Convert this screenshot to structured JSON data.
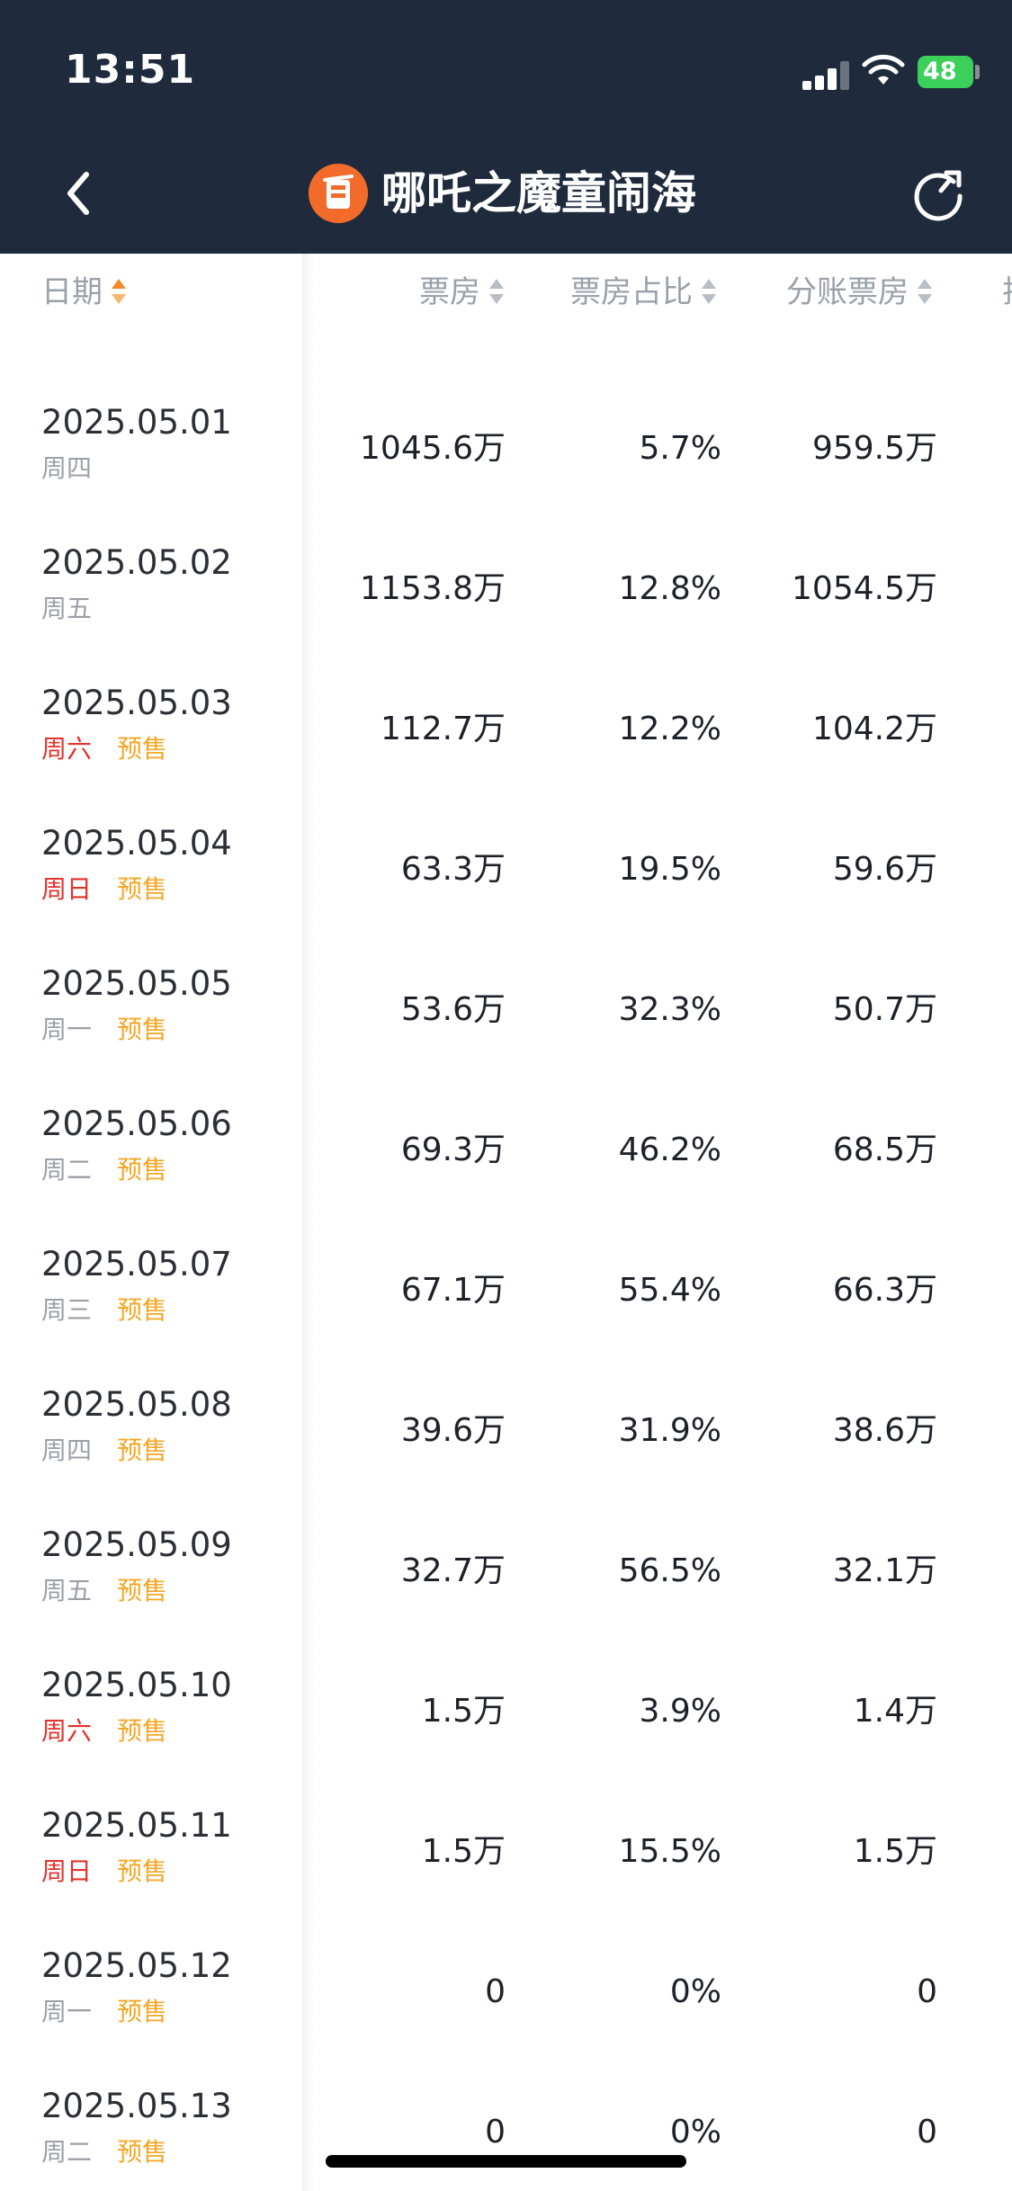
{
  "status_bar": {
    "time": "13:51",
    "battery": "48"
  },
  "nav": {
    "back_icon": "chevron-left-icon",
    "logo_icon": "movie-logo-icon",
    "title": "哪吒之魔童闹海",
    "refresh_icon": "refresh-icon"
  },
  "columns": {
    "date": "日期",
    "box_office": "票房",
    "share": "票房占比",
    "split_box_office": "分账票房",
    "next_partial": "排"
  },
  "presale_label": "预售",
  "colors": {
    "nav_bg": "#1f2a3d",
    "weekend": "#e5302b",
    "presale": "#f5a623",
    "sort_active": "#f38b2c"
  },
  "rows": [
    {
      "date": "2025.05.01",
      "weekday": "周四",
      "weekend": false,
      "presale": false,
      "box_office": "1045.6万",
      "share": "5.7%",
      "split": "959.5万"
    },
    {
      "date": "2025.05.02",
      "weekday": "周五",
      "weekend": false,
      "presale": false,
      "box_office": "1153.8万",
      "share": "12.8%",
      "split": "1054.5万"
    },
    {
      "date": "2025.05.03",
      "weekday": "周六",
      "weekend": true,
      "presale": true,
      "box_office": "112.7万",
      "share": "12.2%",
      "split": "104.2万"
    },
    {
      "date": "2025.05.04",
      "weekday": "周日",
      "weekend": true,
      "presale": true,
      "box_office": "63.3万",
      "share": "19.5%",
      "split": "59.6万"
    },
    {
      "date": "2025.05.05",
      "weekday": "周一",
      "weekend": false,
      "presale": true,
      "box_office": "53.6万",
      "share": "32.3%",
      "split": "50.7万"
    },
    {
      "date": "2025.05.06",
      "weekday": "周二",
      "weekend": false,
      "presale": true,
      "box_office": "69.3万",
      "share": "46.2%",
      "split": "68.5万"
    },
    {
      "date": "2025.05.07",
      "weekday": "周三",
      "weekend": false,
      "presale": true,
      "box_office": "67.1万",
      "share": "55.4%",
      "split": "66.3万"
    },
    {
      "date": "2025.05.08",
      "weekday": "周四",
      "weekend": false,
      "presale": true,
      "box_office": "39.6万",
      "share": "31.9%",
      "split": "38.6万"
    },
    {
      "date": "2025.05.09",
      "weekday": "周五",
      "weekend": false,
      "presale": true,
      "box_office": "32.7万",
      "share": "56.5%",
      "split": "32.1万"
    },
    {
      "date": "2025.05.10",
      "weekday": "周六",
      "weekend": true,
      "presale": true,
      "box_office": "1.5万",
      "share": "3.9%",
      "split": "1.4万"
    },
    {
      "date": "2025.05.11",
      "weekday": "周日",
      "weekend": true,
      "presale": true,
      "box_office": "1.5万",
      "share": "15.5%",
      "split": "1.5万"
    },
    {
      "date": "2025.05.12",
      "weekday": "周一",
      "weekend": false,
      "presale": true,
      "box_office": "0",
      "share": "0%",
      "split": "0"
    },
    {
      "date": "2025.05.13",
      "weekday": "周二",
      "weekend": false,
      "presale": true,
      "box_office": "0",
      "share": "0%",
      "split": "0"
    }
  ]
}
